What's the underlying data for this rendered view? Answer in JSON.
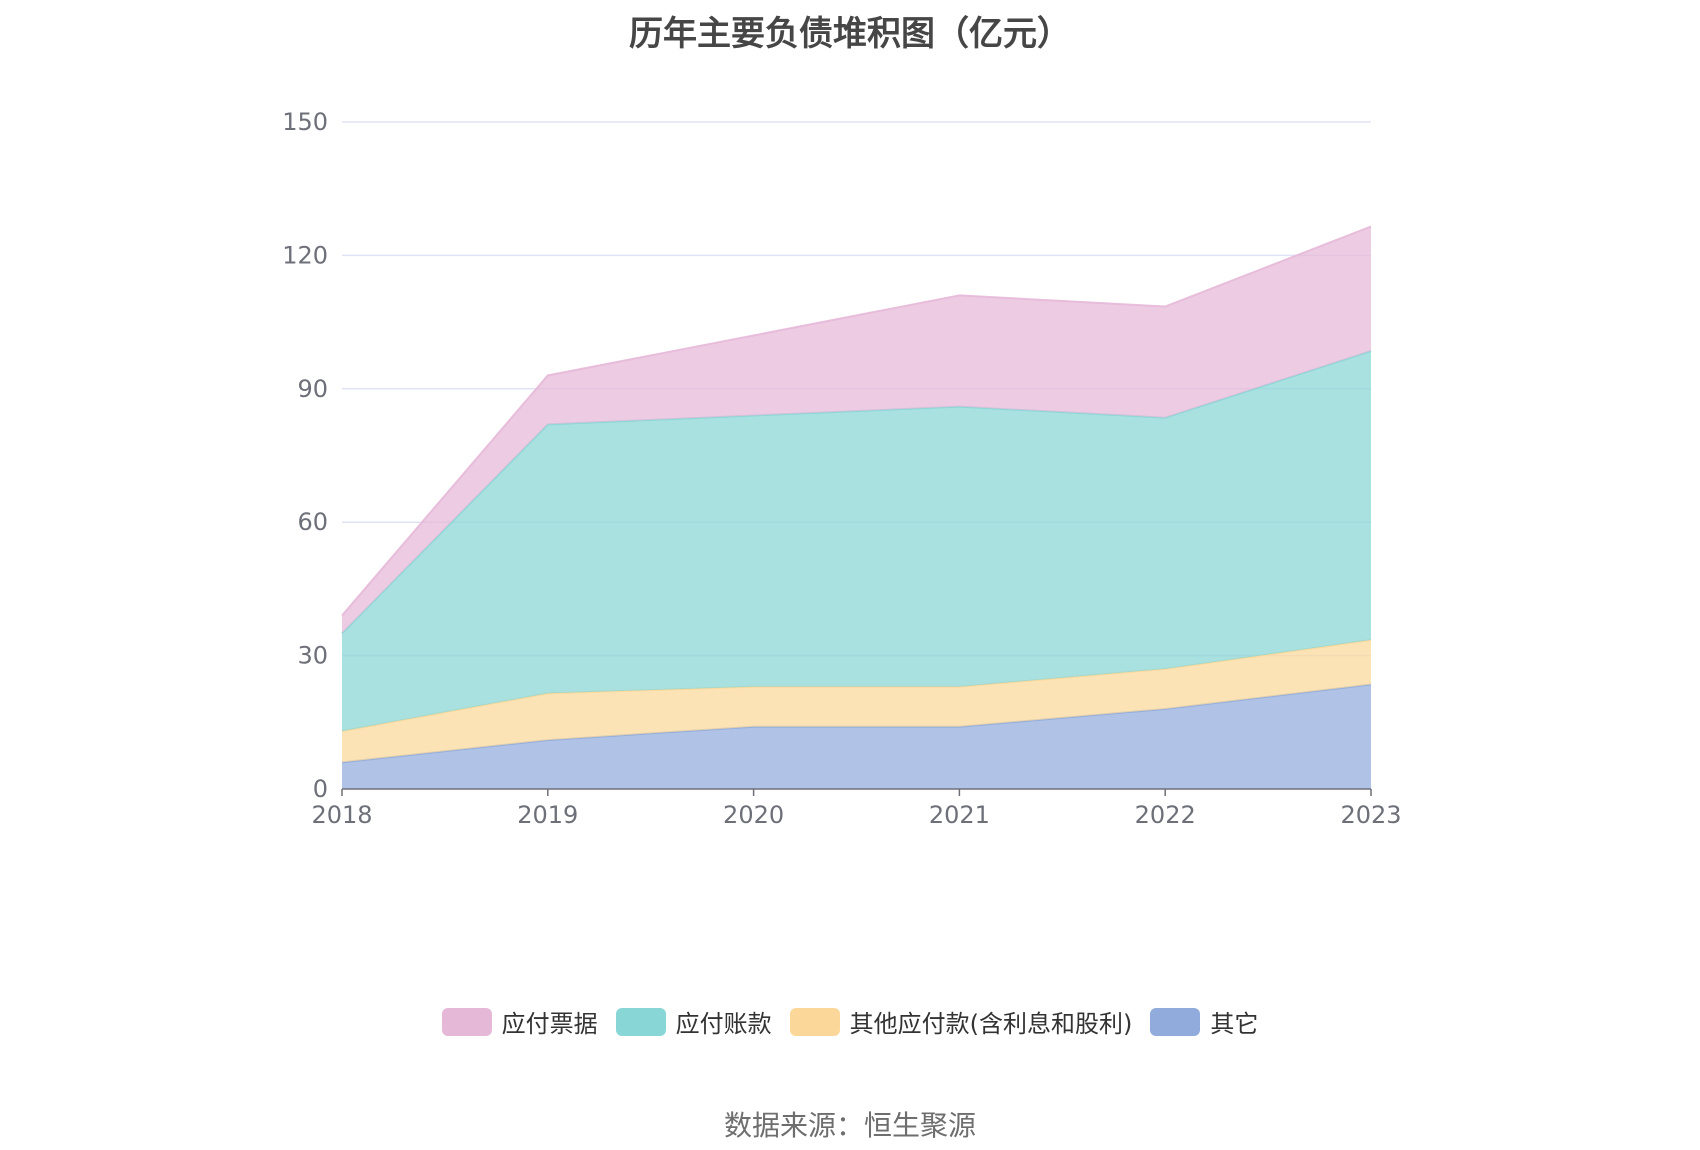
{
  "chart_data": {
    "type": "area",
    "stacked": true,
    "title": "历年主要负债堆积图（亿元）",
    "categories": [
      "2018",
      "2019",
      "2020",
      "2021",
      "2022",
      "2023"
    ],
    "ylim": [
      0,
      150
    ],
    "yticks": [
      0,
      30,
      60,
      90,
      120,
      150
    ],
    "grid": true,
    "legend_position": "bottom",
    "series": [
      {
        "name": "其它",
        "color": "#91acdc",
        "values": [
          6,
          11,
          14,
          14,
          18,
          23.5
        ]
      },
      {
        "name": "其他应付款(含利息和股利)",
        "color": "#fbd89a",
        "values": [
          7,
          10.5,
          9,
          9,
          9,
          10
        ]
      },
      {
        "name": "应付账款",
        "color": "#88d6d6",
        "values": [
          22,
          60.5,
          61,
          63,
          56.5,
          65
        ]
      },
      {
        "name": "应付票据",
        "color": "#e6b8d8",
        "values": [
          4,
          11,
          18,
          25,
          25,
          28
        ]
      }
    ],
    "legend_order": [
      "应付票据",
      "应付账款",
      "其他应付款(含利息和股利)",
      "其它"
    ]
  },
  "source": "数据来源：恒生聚源"
}
